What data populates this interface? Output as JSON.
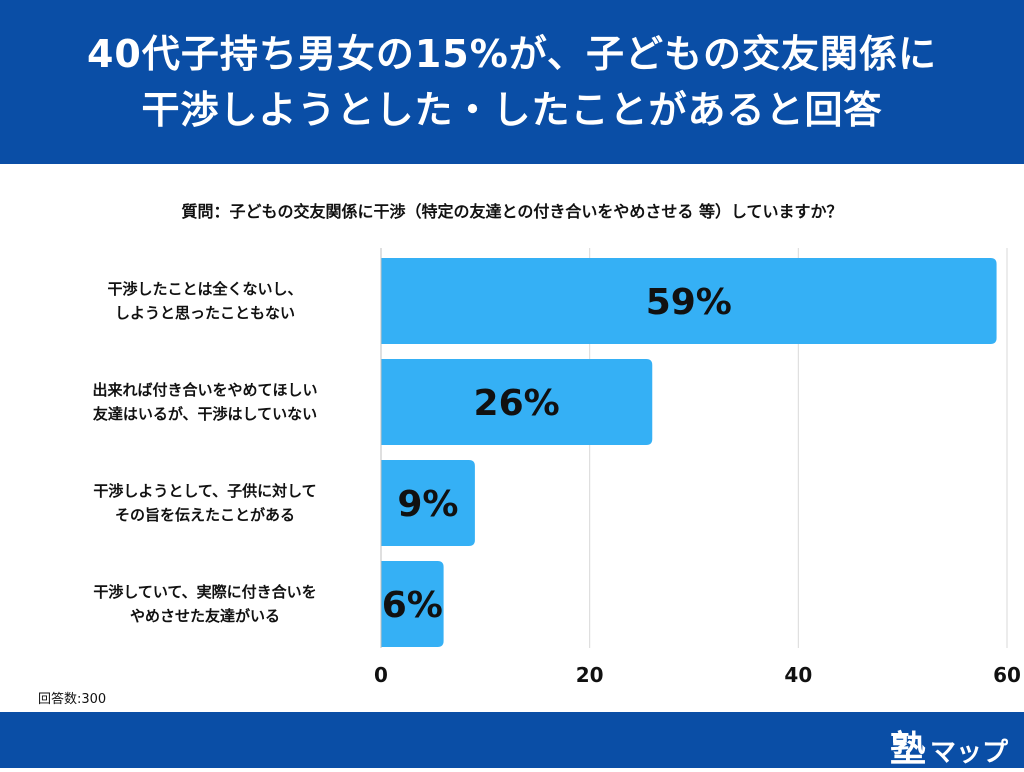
{
  "header": {
    "title_line1": "40代子持ち男女の15%が、子どもの交友関係に",
    "title_line2": "干渉しようとした・したことがあると回答"
  },
  "question": "質問：子どもの交友関係に干渉（特定の友達との付き合いをやめさせる 等）していますか？",
  "sample_size": "回答数:300",
  "logo": {
    "kanji": "塾",
    "kana": "マップ"
  },
  "colors": {
    "header_bg": "#0a4ea6",
    "bar": "#35b0f5",
    "grid": "#d9d9d9"
  },
  "chart_data": {
    "type": "bar",
    "orientation": "horizontal",
    "title": "質問：子どもの交友関係に干渉（特定の友達との付き合いをやめさせる 等）していますか？",
    "categories": [
      [
        "干渉したことは全くないし、",
        "しようと思ったこともない"
      ],
      [
        "出来れば付き合いをやめてほしい",
        "友達はいるが、干渉はしていない"
      ],
      [
        "干渉しようとして、子供に対して",
        "その旨を伝えたことがある"
      ],
      [
        "干渉していて、実際に付き合いを",
        "やめさせた友達がいる"
      ]
    ],
    "values": [
      59,
      26,
      9,
      6
    ],
    "data_labels": [
      "59%",
      "26%",
      "9%",
      "6%"
    ],
    "xlim": [
      0,
      60
    ],
    "xticks": [
      0,
      20,
      40,
      60
    ],
    "xlabel": "",
    "ylabel": "",
    "grid": true,
    "legend": "none"
  }
}
